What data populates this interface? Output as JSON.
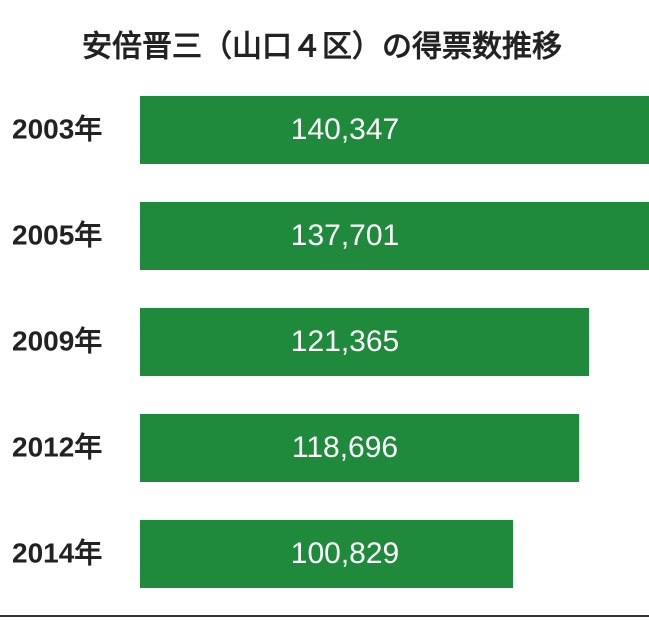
{
  "chart_data": {
    "type": "bar",
    "orientation": "horizontal",
    "title": "安倍晋三（山口４区）の得票数推移",
    "categories": [
      "2003年",
      "2005年",
      "2009年",
      "2012年",
      "2014年"
    ],
    "values": [
      140347,
      137701,
      121365,
      118696,
      100829
    ],
    "value_labels": [
      "140,347",
      "137,701",
      "121,365",
      "118,696",
      "100,829"
    ],
    "color": "#1f8a3b"
  }
}
